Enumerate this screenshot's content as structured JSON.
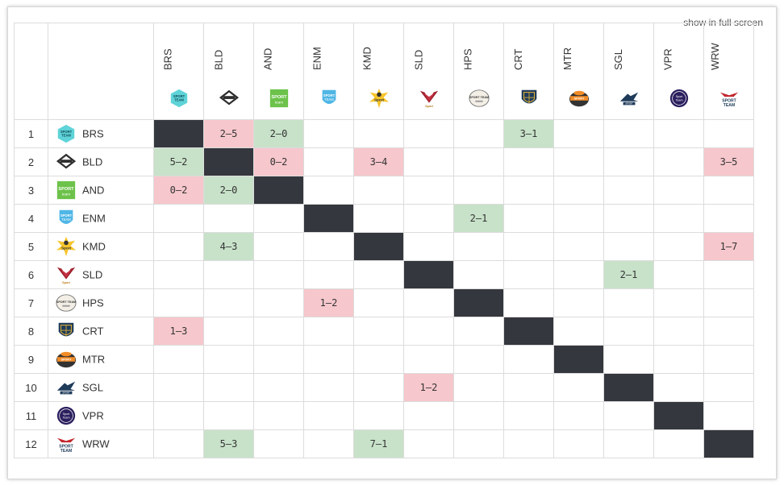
{
  "header": {
    "fullscreen_label": "show in full screen"
  },
  "teams": [
    {
      "code": "BRS",
      "rank": "1",
      "logo": "badge-hexagon-teal-icon"
    },
    {
      "code": "BLD",
      "rank": "2",
      "logo": "badge-diamond-mono-icon"
    },
    {
      "code": "AND",
      "rank": "3",
      "logo": "badge-square-green-icon"
    },
    {
      "code": "ENM",
      "rank": "4",
      "logo": "badge-shield-blue-icon"
    },
    {
      "code": "KMD",
      "rank": "5",
      "logo": "badge-splash-yellow-icon"
    },
    {
      "code": "SLD",
      "rank": "6",
      "logo": "badge-wings-red-icon"
    },
    {
      "code": "HPS",
      "rank": "7",
      "logo": "badge-oval-cream-icon"
    },
    {
      "code": "CRT",
      "rank": "8",
      "logo": "badge-shield-navy-icon"
    },
    {
      "code": "MTR",
      "rank": "9",
      "logo": "badge-helmet-orange-icon"
    },
    {
      "code": "SGL",
      "rank": "10",
      "logo": "badge-eagle-navy-icon"
    },
    {
      "code": "VPR",
      "rank": "11",
      "logo": "badge-circle-purple-icon"
    },
    {
      "code": "WRW",
      "rank": "12",
      "logo": "badge-eagle-red-icon"
    }
  ],
  "results": [
    [
      null,
      {
        "score": "2–5",
        "outcome": "loss"
      },
      {
        "score": "2–0",
        "outcome": "win"
      },
      null,
      null,
      null,
      null,
      {
        "score": "3–1",
        "outcome": "win"
      },
      null,
      null,
      null,
      null
    ],
    [
      {
        "score": "5–2",
        "outcome": "win"
      },
      null,
      {
        "score": "0–2",
        "outcome": "loss"
      },
      null,
      {
        "score": "3–4",
        "outcome": "loss"
      },
      null,
      null,
      null,
      null,
      null,
      null,
      {
        "score": "3–5",
        "outcome": "loss"
      }
    ],
    [
      {
        "score": "0–2",
        "outcome": "loss"
      },
      {
        "score": "2–0",
        "outcome": "win"
      },
      null,
      null,
      null,
      null,
      null,
      null,
      null,
      null,
      null,
      null
    ],
    [
      null,
      null,
      null,
      null,
      null,
      null,
      {
        "score": "2–1",
        "outcome": "win"
      },
      null,
      null,
      null,
      null,
      null
    ],
    [
      null,
      {
        "score": "4–3",
        "outcome": "win"
      },
      null,
      null,
      null,
      null,
      null,
      null,
      null,
      null,
      null,
      {
        "score": "1–7",
        "outcome": "loss"
      }
    ],
    [
      null,
      null,
      null,
      null,
      null,
      null,
      null,
      null,
      null,
      {
        "score": "2–1",
        "outcome": "win"
      },
      null,
      null
    ],
    [
      null,
      null,
      null,
      {
        "score": "1–2",
        "outcome": "loss"
      },
      null,
      null,
      null,
      null,
      null,
      null,
      null,
      null
    ],
    [
      {
        "score": "1–3",
        "outcome": "loss"
      },
      null,
      null,
      null,
      null,
      null,
      null,
      null,
      null,
      null,
      null,
      null
    ],
    [
      null,
      null,
      null,
      null,
      null,
      null,
      null,
      null,
      null,
      null,
      null,
      null
    ],
    [
      null,
      null,
      null,
      null,
      null,
      {
        "score": "1–2",
        "outcome": "loss"
      },
      null,
      null,
      null,
      null,
      null,
      null
    ],
    [
      null,
      null,
      null,
      null,
      null,
      null,
      null,
      null,
      null,
      null,
      null,
      null
    ],
    [
      null,
      {
        "score": "5–3",
        "outcome": "win"
      },
      null,
      null,
      {
        "score": "7–1",
        "outcome": "win"
      },
      null,
      null,
      null,
      null,
      null,
      null,
      null
    ]
  ],
  "colors": {
    "win": "#c8e2c9",
    "loss": "#f6c7cc",
    "diagonal": "#34373d",
    "grid": "#dcdcdc"
  }
}
